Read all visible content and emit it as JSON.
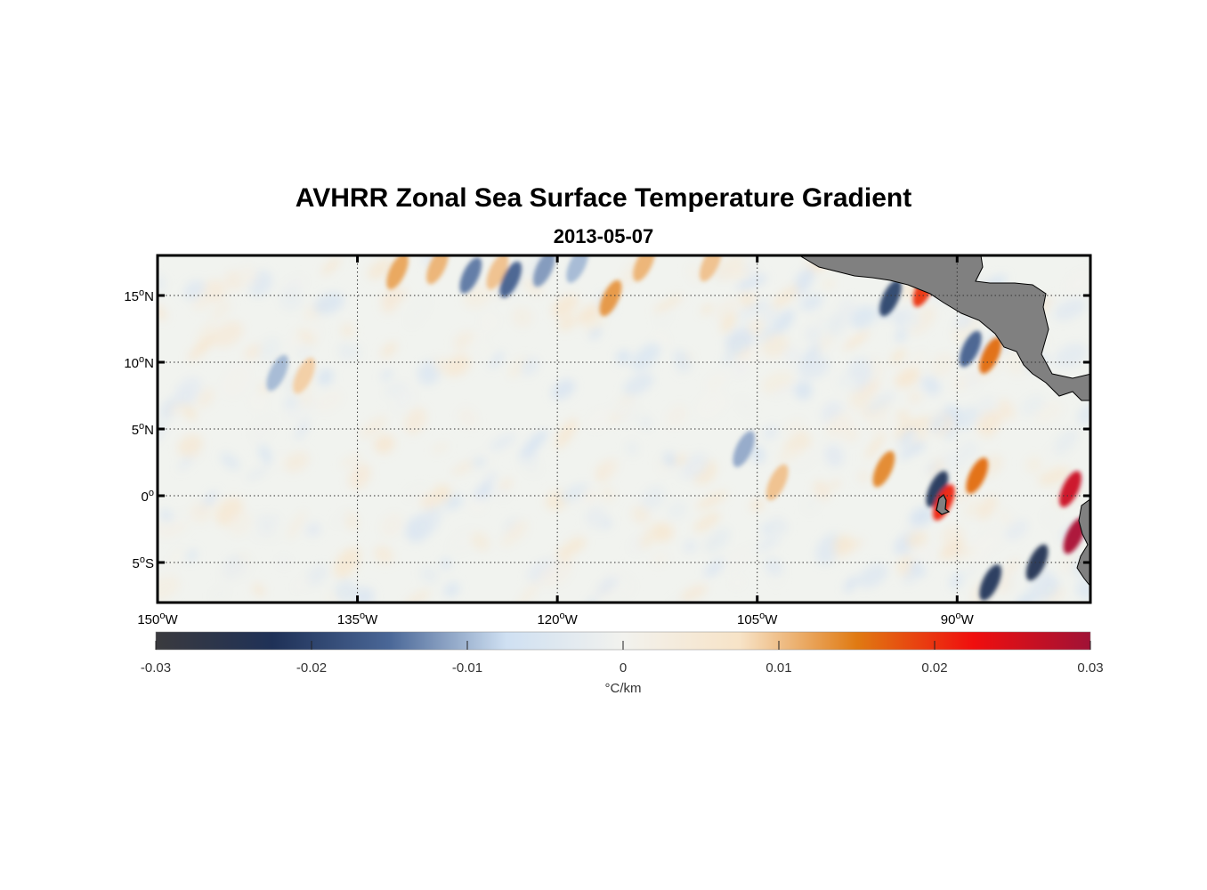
{
  "title": "AVHRR Zonal Sea Surface Temperature Gradient",
  "subtitle": "2013-05-07",
  "map": {
    "lon_range": [
      -150,
      -80
    ],
    "lat_range": [
      -8,
      18
    ],
    "lat_ticks": [
      {
        "value": 15,
        "num": "15",
        "suffix": "N"
      },
      {
        "value": 10,
        "num": "10",
        "suffix": "N"
      },
      {
        "value": 5,
        "num": "5",
        "suffix": "N"
      },
      {
        "value": 0,
        "num": "0",
        "suffix": ""
      },
      {
        "value": -5,
        "num": "5",
        "suffix": "S"
      }
    ],
    "lon_ticks": [
      {
        "value": -150,
        "num": "150",
        "suffix": "W"
      },
      {
        "value": -135,
        "num": "135",
        "suffix": "W"
      },
      {
        "value": -120,
        "num": "120",
        "suffix": "W"
      },
      {
        "value": -105,
        "num": "105",
        "suffix": "W"
      },
      {
        "value": -90,
        "num": "90",
        "suffix": "W"
      }
    ],
    "degree_symbol": "o",
    "land_color": "#808080",
    "frame_color": "#000000"
  },
  "colorbar": {
    "range": [
      -0.03,
      0.03
    ],
    "ticks": [
      "-0.03",
      "-0.02",
      "-0.01",
      "0",
      "0.01",
      "0.02",
      "0.03"
    ],
    "tick_values": [
      -0.03,
      -0.02,
      -0.01,
      0,
      0.01,
      0.02,
      0.03
    ],
    "label": "°C/km",
    "stops": [
      "#3a3a3e",
      "#1f3157",
      "#4a6797",
      "#cfe0f2",
      "#f2f2ee",
      "#f7e3c7",
      "#e07a12",
      "#f00e0e",
      "#a01236"
    ]
  },
  "chart_data": {
    "type": "heatmap",
    "title": "AVHRR Zonal Sea Surface Temperature Gradient",
    "subtitle": "2013-05-07",
    "units": "°C/km",
    "x_range": [
      -150,
      -80
    ],
    "y_range": [
      -8,
      18
    ],
    "color_range": [
      -0.03,
      0.03
    ],
    "features": [
      {
        "lon": -132,
        "lat": 16.8,
        "value": 0.012
      },
      {
        "lon": -129,
        "lat": 17.2,
        "value": 0.011
      },
      {
        "lon": -126.5,
        "lat": 16.5,
        "value": -0.014
      },
      {
        "lon": -124.5,
        "lat": 16.8,
        "value": 0.01
      },
      {
        "lon": -123.5,
        "lat": 16.2,
        "value": -0.016
      },
      {
        "lon": -121,
        "lat": 17.0,
        "value": -0.012
      },
      {
        "lon": -118.5,
        "lat": 17.3,
        "value": -0.01
      },
      {
        "lon": -116,
        "lat": 14.8,
        "value": 0.013
      },
      {
        "lon": -113.5,
        "lat": 17.4,
        "value": 0.011
      },
      {
        "lon": -108.5,
        "lat": 17.4,
        "value": 0.01
      },
      {
        "lon": -141,
        "lat": 9.2,
        "value": -0.01
      },
      {
        "lon": -139,
        "lat": 9.0,
        "value": 0.009
      },
      {
        "lon": -106,
        "lat": 3.5,
        "value": -0.011
      },
      {
        "lon": -103.5,
        "lat": 1.0,
        "value": 0.01
      },
      {
        "lon": -95,
        "lat": 14.8,
        "value": -0.02
      },
      {
        "lon": -92.5,
        "lat": 15.5,
        "value": 0.02
      },
      {
        "lon": -87.5,
        "lat": 10.5,
        "value": 0.016
      },
      {
        "lon": -89,
        "lat": 11.0,
        "value": -0.016
      },
      {
        "lon": -95.5,
        "lat": 2.0,
        "value": 0.014
      },
      {
        "lon": -88.5,
        "lat": 1.5,
        "value": 0.016
      },
      {
        "lon": -91.5,
        "lat": 0.5,
        "value": -0.022
      },
      {
        "lon": -91,
        "lat": -0.5,
        "value": 0.021
      },
      {
        "lon": -81.5,
        "lat": 0.5,
        "value": 0.026
      },
      {
        "lon": -81.2,
        "lat": -3.0,
        "value": 0.029
      },
      {
        "lon": -84,
        "lat": -5.0,
        "value": -0.024
      },
      {
        "lon": -87.5,
        "lat": -6.5,
        "value": -0.022
      }
    ]
  }
}
